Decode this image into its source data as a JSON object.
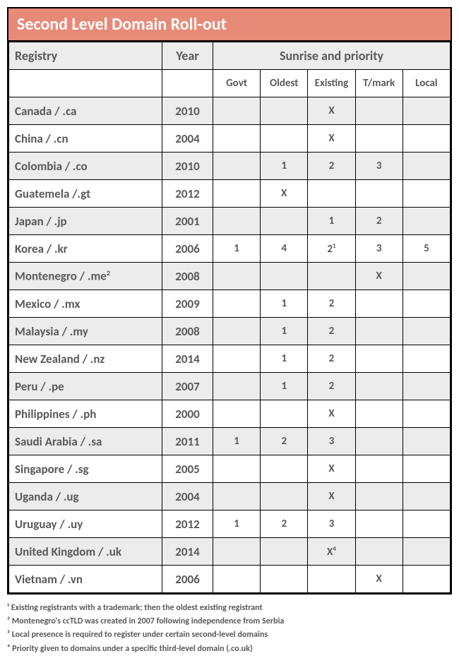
{
  "title": "Second Level Domain Roll-out",
  "colors": {
    "header_bg": "#e88a78",
    "text": "#595959",
    "shade": "#ececec",
    "border": "#000000"
  },
  "columns": {
    "registry": "Registry",
    "year": "Year",
    "group": "Sunrise and priority",
    "sub": [
      "Govt",
      "Oldest",
      "Existing",
      "T/mark",
      "Local"
    ]
  },
  "rows": [
    {
      "registry": "Canada / .ca",
      "year": "2010",
      "cells": [
        "",
        "",
        "X",
        "",
        ""
      ]
    },
    {
      "registry": "China / .cn",
      "year": "2004",
      "cells": [
        "",
        "",
        "X",
        "",
        ""
      ]
    },
    {
      "registry": "Colombia / .co",
      "year": "2010",
      "cells": [
        "",
        "1",
        "2",
        "3",
        ""
      ]
    },
    {
      "registry": "Guatemela /.gt",
      "year": "2012",
      "cells": [
        "",
        "X",
        "",
        "",
        ""
      ]
    },
    {
      "registry": "Japan / .jp",
      "year": "2001",
      "cells": [
        "",
        "",
        "1",
        "2",
        ""
      ]
    },
    {
      "registry": "Korea / .kr",
      "year": "2006",
      "cells": [
        "1",
        "4",
        "2",
        "3",
        "5"
      ],
      "sup": {
        "2": "1"
      }
    },
    {
      "registry": "Montenegro / .me",
      "reg_sup": "2",
      "year": "2008",
      "cells": [
        "",
        "",
        "",
        "X",
        ""
      ]
    },
    {
      "registry": "Mexico / .mx",
      "year": "2009",
      "cells": [
        "",
        "1",
        "2",
        "",
        ""
      ]
    },
    {
      "registry": "Malaysia / .my",
      "year": "2008",
      "cells": [
        "",
        "1",
        "2",
        "",
        ""
      ]
    },
    {
      "registry": "New Zealand / .nz",
      "year": "2014",
      "cells": [
        "",
        "1",
        "2",
        "",
        ""
      ]
    },
    {
      "registry": "Peru / .pe",
      "year": "2007",
      "cells": [
        "",
        "1",
        "2",
        "",
        ""
      ]
    },
    {
      "registry": "Philippines / .ph",
      "year": "2000",
      "cells": [
        "",
        "",
        "X",
        "",
        ""
      ]
    },
    {
      "registry": "Saudi Arabia / .sa",
      "year": "2011",
      "cells": [
        "1",
        "2",
        "3",
        "",
        ""
      ]
    },
    {
      "registry": "Singapore / .sg",
      "year": "2005",
      "cells": [
        "",
        "",
        "X",
        "",
        ""
      ]
    },
    {
      "registry": "Uganda / .ug",
      "year": "2004",
      "cells": [
        "",
        "",
        "X",
        "",
        ""
      ]
    },
    {
      "registry": "Uruguay / .uy",
      "year": "2012",
      "cells": [
        "1",
        "2",
        "3",
        "",
        ""
      ]
    },
    {
      "registry": "United Kingdom / .uk",
      "year": "2014",
      "cells": [
        "",
        "",
        "X",
        "",
        ""
      ],
      "sup": {
        "2": "4"
      }
    },
    {
      "registry": "Vietnam / .vn",
      "year": "2006",
      "cells": [
        "",
        "",
        "",
        "X",
        ""
      ]
    }
  ],
  "footnotes": [
    "¹ Existing registrants with a trademark; then the oldest existing registrant",
    "² Montenegro's ccTLD was created in 2007 following independence from Serbia",
    "³ Local presence is required to register under certain second-level domains",
    "⁴ Priority given to domains under a specific third-level domain (.co.uk)"
  ]
}
